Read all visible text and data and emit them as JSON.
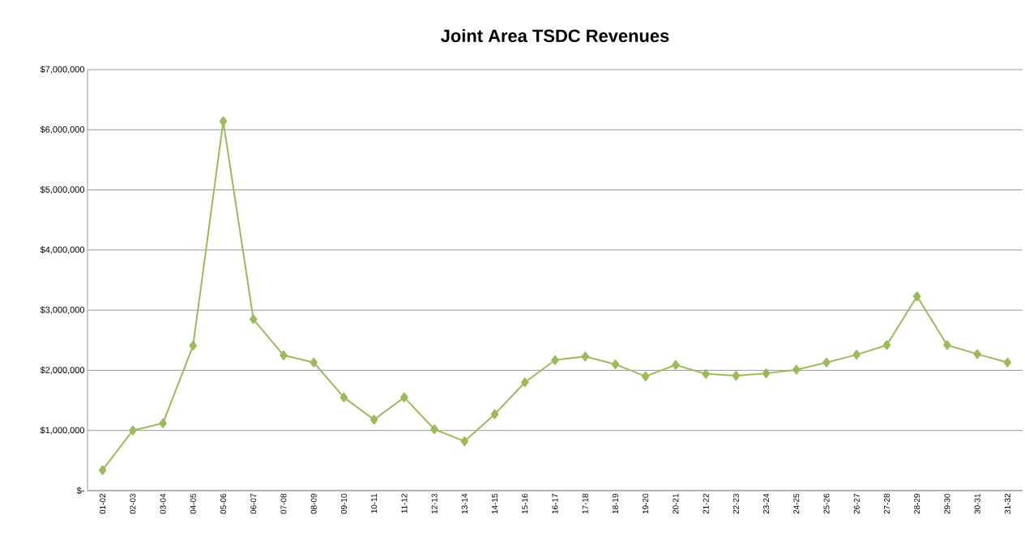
{
  "chart_data": {
    "type": "line",
    "title": "Joint Area TSDC Revenues",
    "categories": [
      "01-02",
      "02-03",
      "03-04",
      "04-05",
      "05-06",
      "06-07",
      "07-08",
      "08-09",
      "09-10",
      "10-11",
      "11-12",
      "12-13",
      "13-14",
      "14-15",
      "15-16",
      "16-17",
      "17-18",
      "18-19",
      "19-20",
      "20-21",
      "21-22",
      "22-23",
      "23-24",
      "24-25",
      "25-26",
      "26-27",
      "27-28",
      "28-29",
      "29-30",
      "30-31",
      "31-32"
    ],
    "values": [
      340000,
      1000000,
      1120000,
      2410000,
      6140000,
      2850000,
      2250000,
      2130000,
      1550000,
      1180000,
      1550000,
      1020000,
      820000,
      1270000,
      1800000,
      2170000,
      2230000,
      2100000,
      1900000,
      2090000,
      1940000,
      1910000,
      1950000,
      2010000,
      2130000,
      2260000,
      2420000,
      3230000,
      2420000,
      2270000,
      2130000
    ],
    "color": "#9bbb59",
    "marker": "diamond",
    "grid": "y",
    "ylim": [
      0,
      7000000
    ],
    "yticks": [
      {
        "value": 0,
        "label": "$-"
      },
      {
        "value": 1000000,
        "label": "$1,000,000"
      },
      {
        "value": 2000000,
        "label": "$2,000,000"
      },
      {
        "value": 3000000,
        "label": "$3,000,000"
      },
      {
        "value": 4000000,
        "label": "$4,000,000"
      },
      {
        "value": 5000000,
        "label": "$5,000,000"
      },
      {
        "value": 6000000,
        "label": "$6,000,000"
      },
      {
        "value": 7000000,
        "label": "$7,000,000"
      }
    ]
  }
}
